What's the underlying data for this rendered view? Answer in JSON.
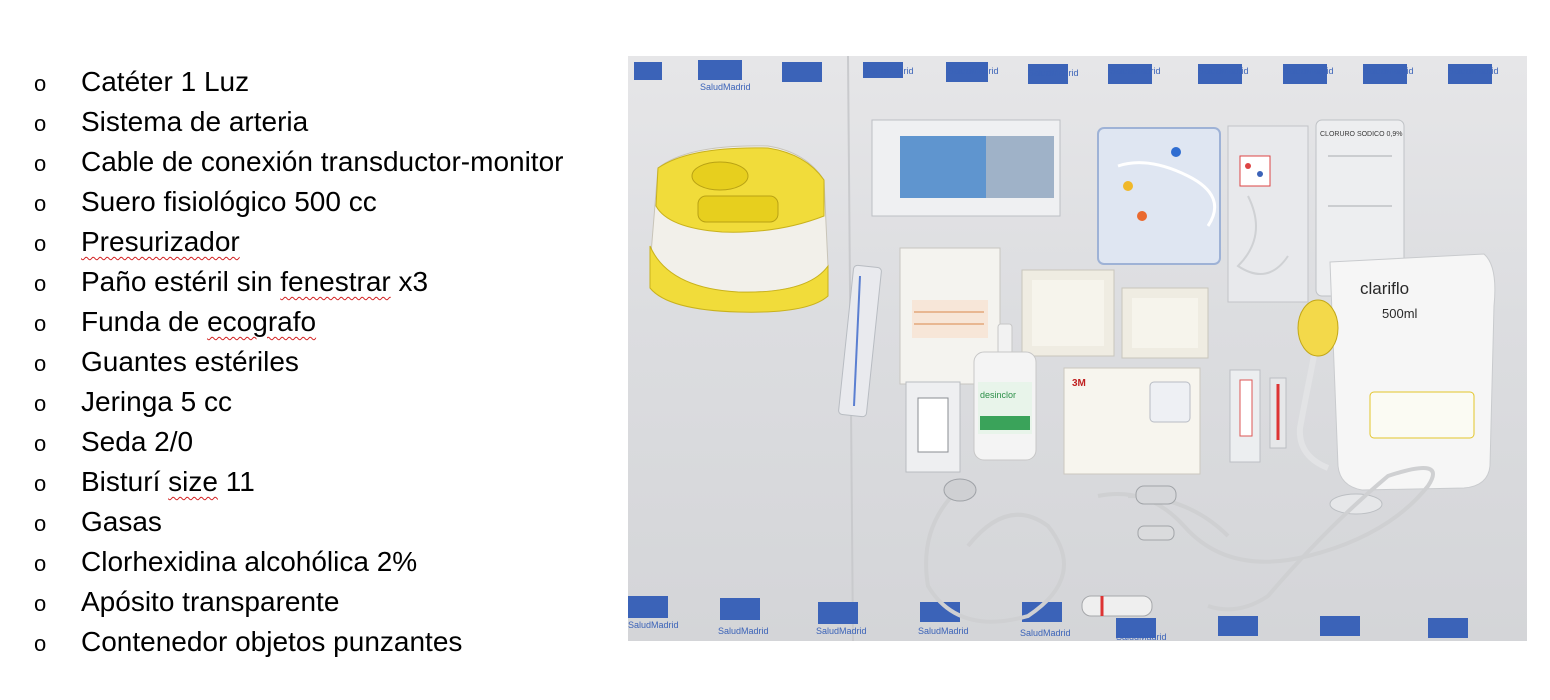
{
  "items": [
    {
      "segments": [
        {
          "text": "Catéter 1 Luz"
        }
      ]
    },
    {
      "segments": [
        {
          "text": "Sistema de arteria"
        }
      ]
    },
    {
      "segments": [
        {
          "text": "Cable de conexión transductor-monitor"
        }
      ]
    },
    {
      "segments": [
        {
          "text": "Suero fisiológico 500 cc"
        }
      ]
    },
    {
      "segments": [
        {
          "text": "Presurizador",
          "spell": true
        }
      ]
    },
    {
      "segments": [
        {
          "text": "Paño estéril sin "
        },
        {
          "text": "fenestrar",
          "spell": true
        },
        {
          "text": " x3"
        }
      ]
    },
    {
      "segments": [
        {
          "text": "Funda de "
        },
        {
          "text": "ecografo",
          "spell": true
        }
      ]
    },
    {
      "segments": [
        {
          "text": "Guantes estériles"
        }
      ]
    },
    {
      "segments": [
        {
          "text": "Jeringa 5 cc"
        }
      ]
    },
    {
      "segments": [
        {
          "text": "Seda 2/0"
        }
      ]
    },
    {
      "segments": [
        {
          "text": "Bisturí "
        },
        {
          "text": "size",
          "spell": true
        },
        {
          "text": " 11"
        }
      ]
    },
    {
      "segments": [
        {
          "text": "Gasas"
        }
      ]
    },
    {
      "segments": [
        {
          "text": "Clorhexidina alcohólica 2%"
        }
      ]
    },
    {
      "segments": [
        {
          "text": "Apósito transparente"
        }
      ]
    },
    {
      "segments": [
        {
          "text": "Contenedor objetos punzantes"
        }
      ]
    }
  ],
  "bullet_glyph": "o",
  "photo": {
    "drape_brand": "SaludMadrid",
    "pressure_bag_brand": "clariflo",
    "pressure_bag_volume": "500ml",
    "antiseptic_label": "desinclor",
    "dressing_brand": "3M",
    "saline_label": "CLORURO SODICO 0,9%"
  }
}
